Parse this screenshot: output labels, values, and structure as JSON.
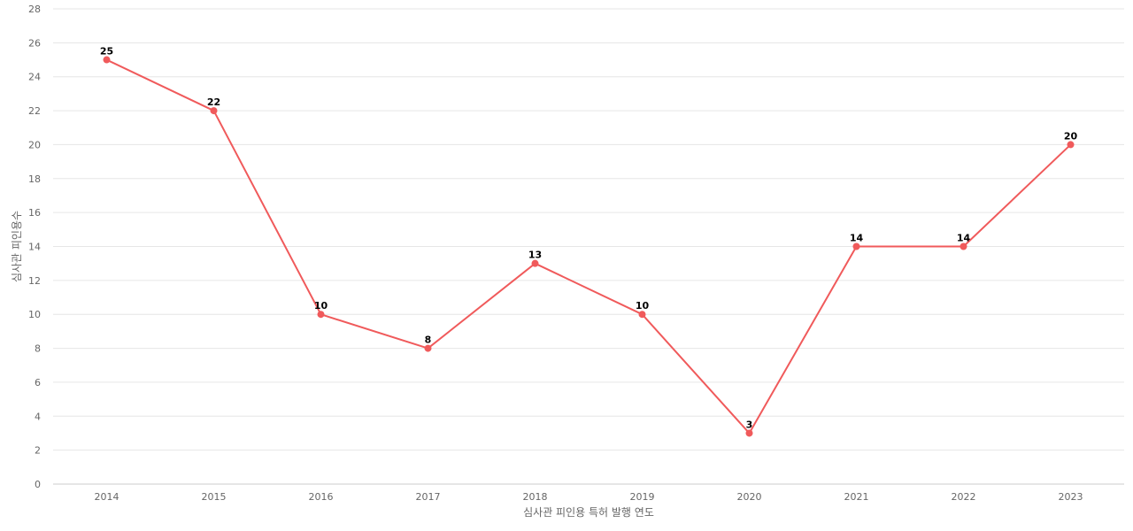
{
  "chart_data": {
    "type": "line",
    "title": "",
    "xlabel": "심사관 피인용 특허 발행 연도",
    "ylabel": "심사관 피인용수",
    "categories": [
      "2014",
      "2015",
      "2016",
      "2017",
      "2018",
      "2019",
      "2020",
      "2021",
      "2022",
      "2023"
    ],
    "series": [
      {
        "values": [
          25,
          22,
          10,
          8,
          13,
          10,
          3,
          14,
          14,
          20
        ],
        "color": "#f05a5b"
      }
    ],
    "ylim": [
      0,
      28
    ],
    "yticks": [
      0,
      2,
      4,
      6,
      8,
      10,
      12,
      14,
      16,
      18,
      20,
      22,
      24,
      26,
      28
    ],
    "grid": true,
    "legend": "none",
    "data_labels": true
  }
}
